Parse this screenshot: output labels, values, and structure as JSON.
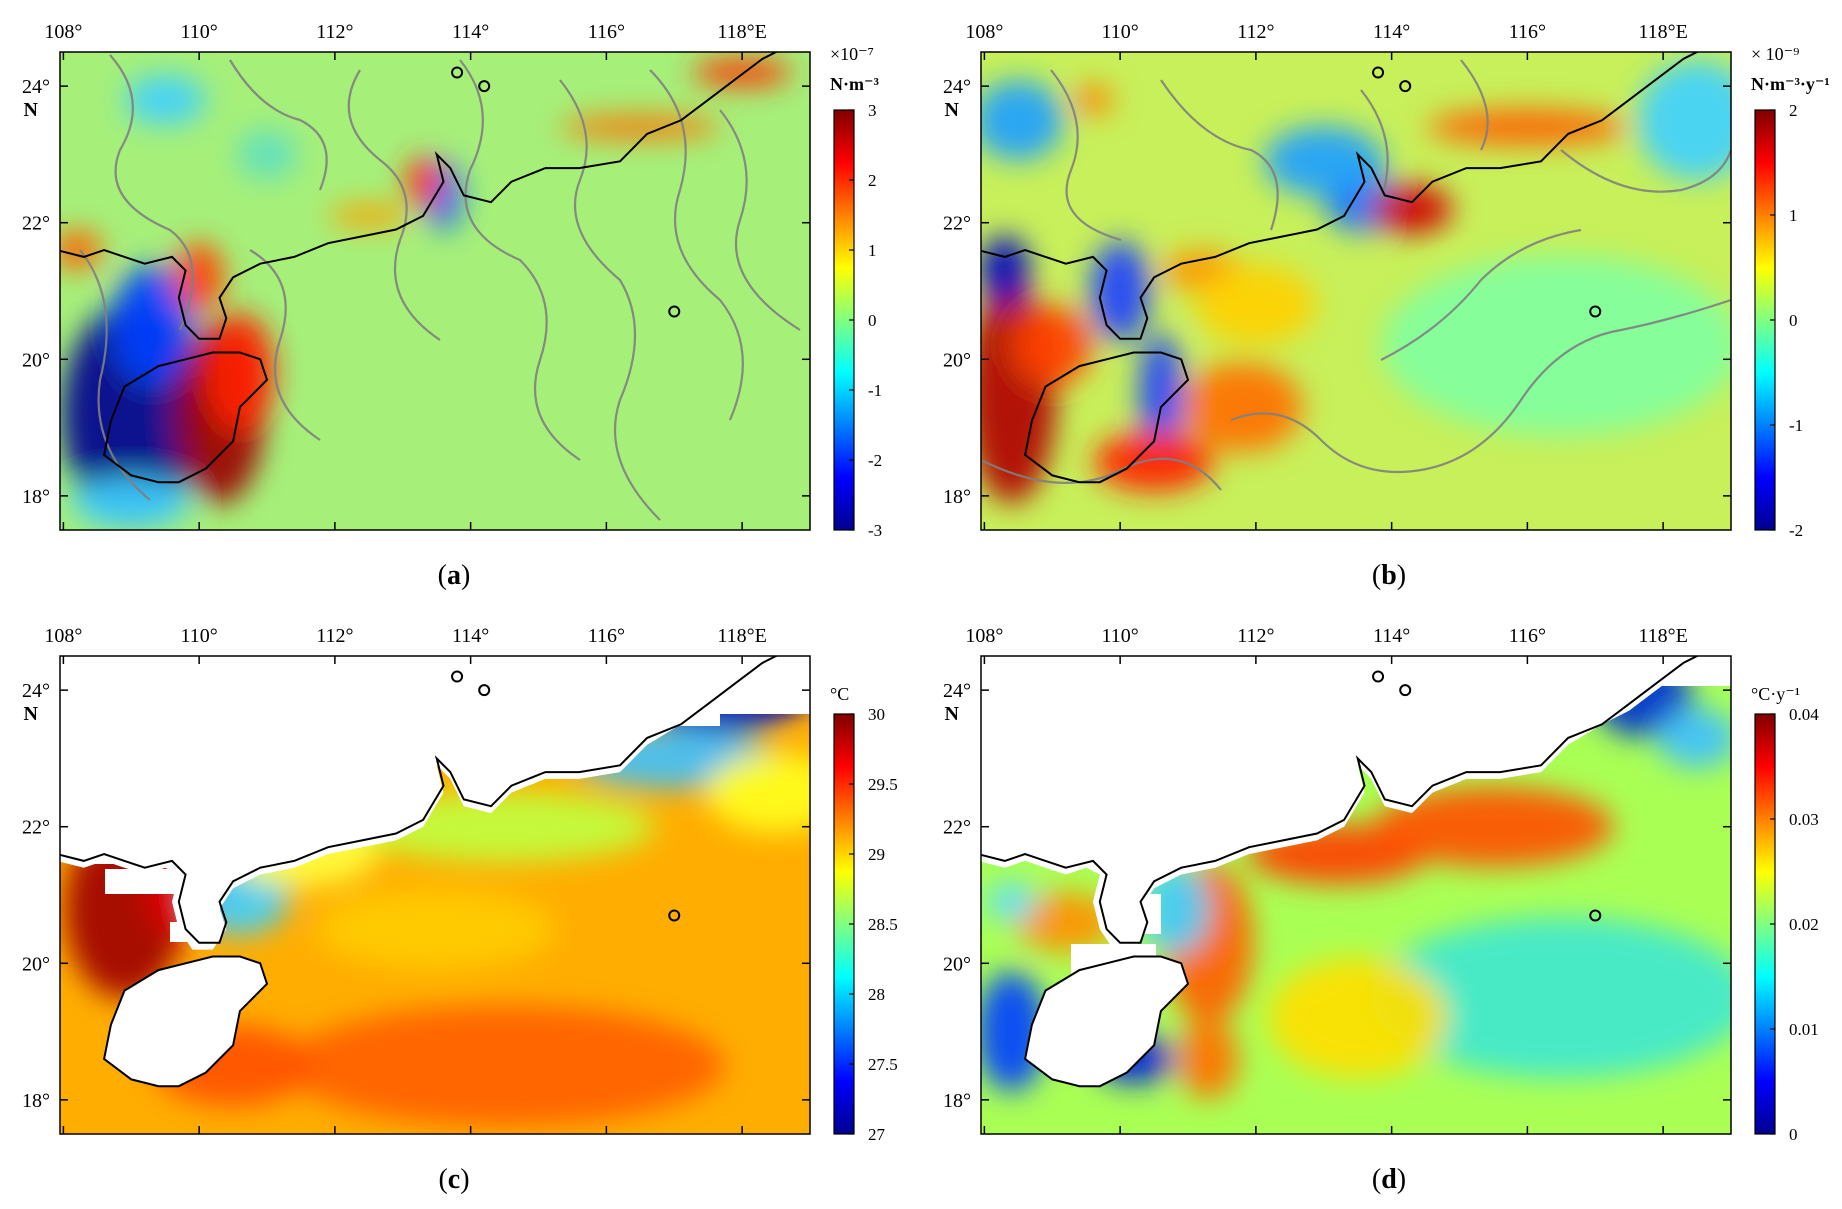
{
  "map": {
    "lon_ticks": [
      "108°",
      "110°",
      "112°",
      "114°",
      "116°",
      "118°E"
    ],
    "lat_ticks": [
      "24°",
      "22°",
      "20°",
      "18°"
    ],
    "lat_unit": "N"
  },
  "panels": [
    {
      "id": "a",
      "caption_pre": "(",
      "caption_letter": "a",
      "caption_post": ")",
      "unit_line1": "×10⁻⁷",
      "unit_line2": "N·m⁻³",
      "cbar_ticks": [
        "3",
        "2",
        "1",
        "0",
        "-1",
        "-2",
        "-3"
      ],
      "style": "diverging-contour"
    },
    {
      "id": "b",
      "caption_pre": "(",
      "caption_letter": "b",
      "caption_post": ")",
      "unit_line1": "× 10⁻⁹",
      "unit_line2": "N·m⁻³·y⁻¹",
      "cbar_ticks": [
        "2",
        "1",
        "0",
        "-1",
        "-2"
      ],
      "style": "diverging-contour"
    },
    {
      "id": "c",
      "caption_pre": "(",
      "caption_letter": "c",
      "caption_post": ")",
      "unit_line1": "°C",
      "unit_line2": "",
      "cbar_ticks": [
        "30",
        "29.5",
        "29",
        "28.5",
        "28",
        "27.5",
        "27"
      ],
      "style": "masked"
    },
    {
      "id": "d",
      "caption_pre": "(",
      "caption_letter": "d",
      "caption_post": ")",
      "unit_line1": "°C·y⁻¹",
      "unit_line2": "",
      "cbar_ticks": [
        "0.04",
        "0.03",
        "0.02",
        "0.01",
        "0"
      ],
      "style": "masked"
    }
  ],
  "colors": {
    "jet": [
      "#00008f",
      "#0000ff",
      "#0080ff",
      "#00ffff",
      "#80ff80",
      "#ffff00",
      "#ff8000",
      "#ff0000",
      "#800000"
    ],
    "coast": "#000000",
    "contour": "#808080"
  }
}
